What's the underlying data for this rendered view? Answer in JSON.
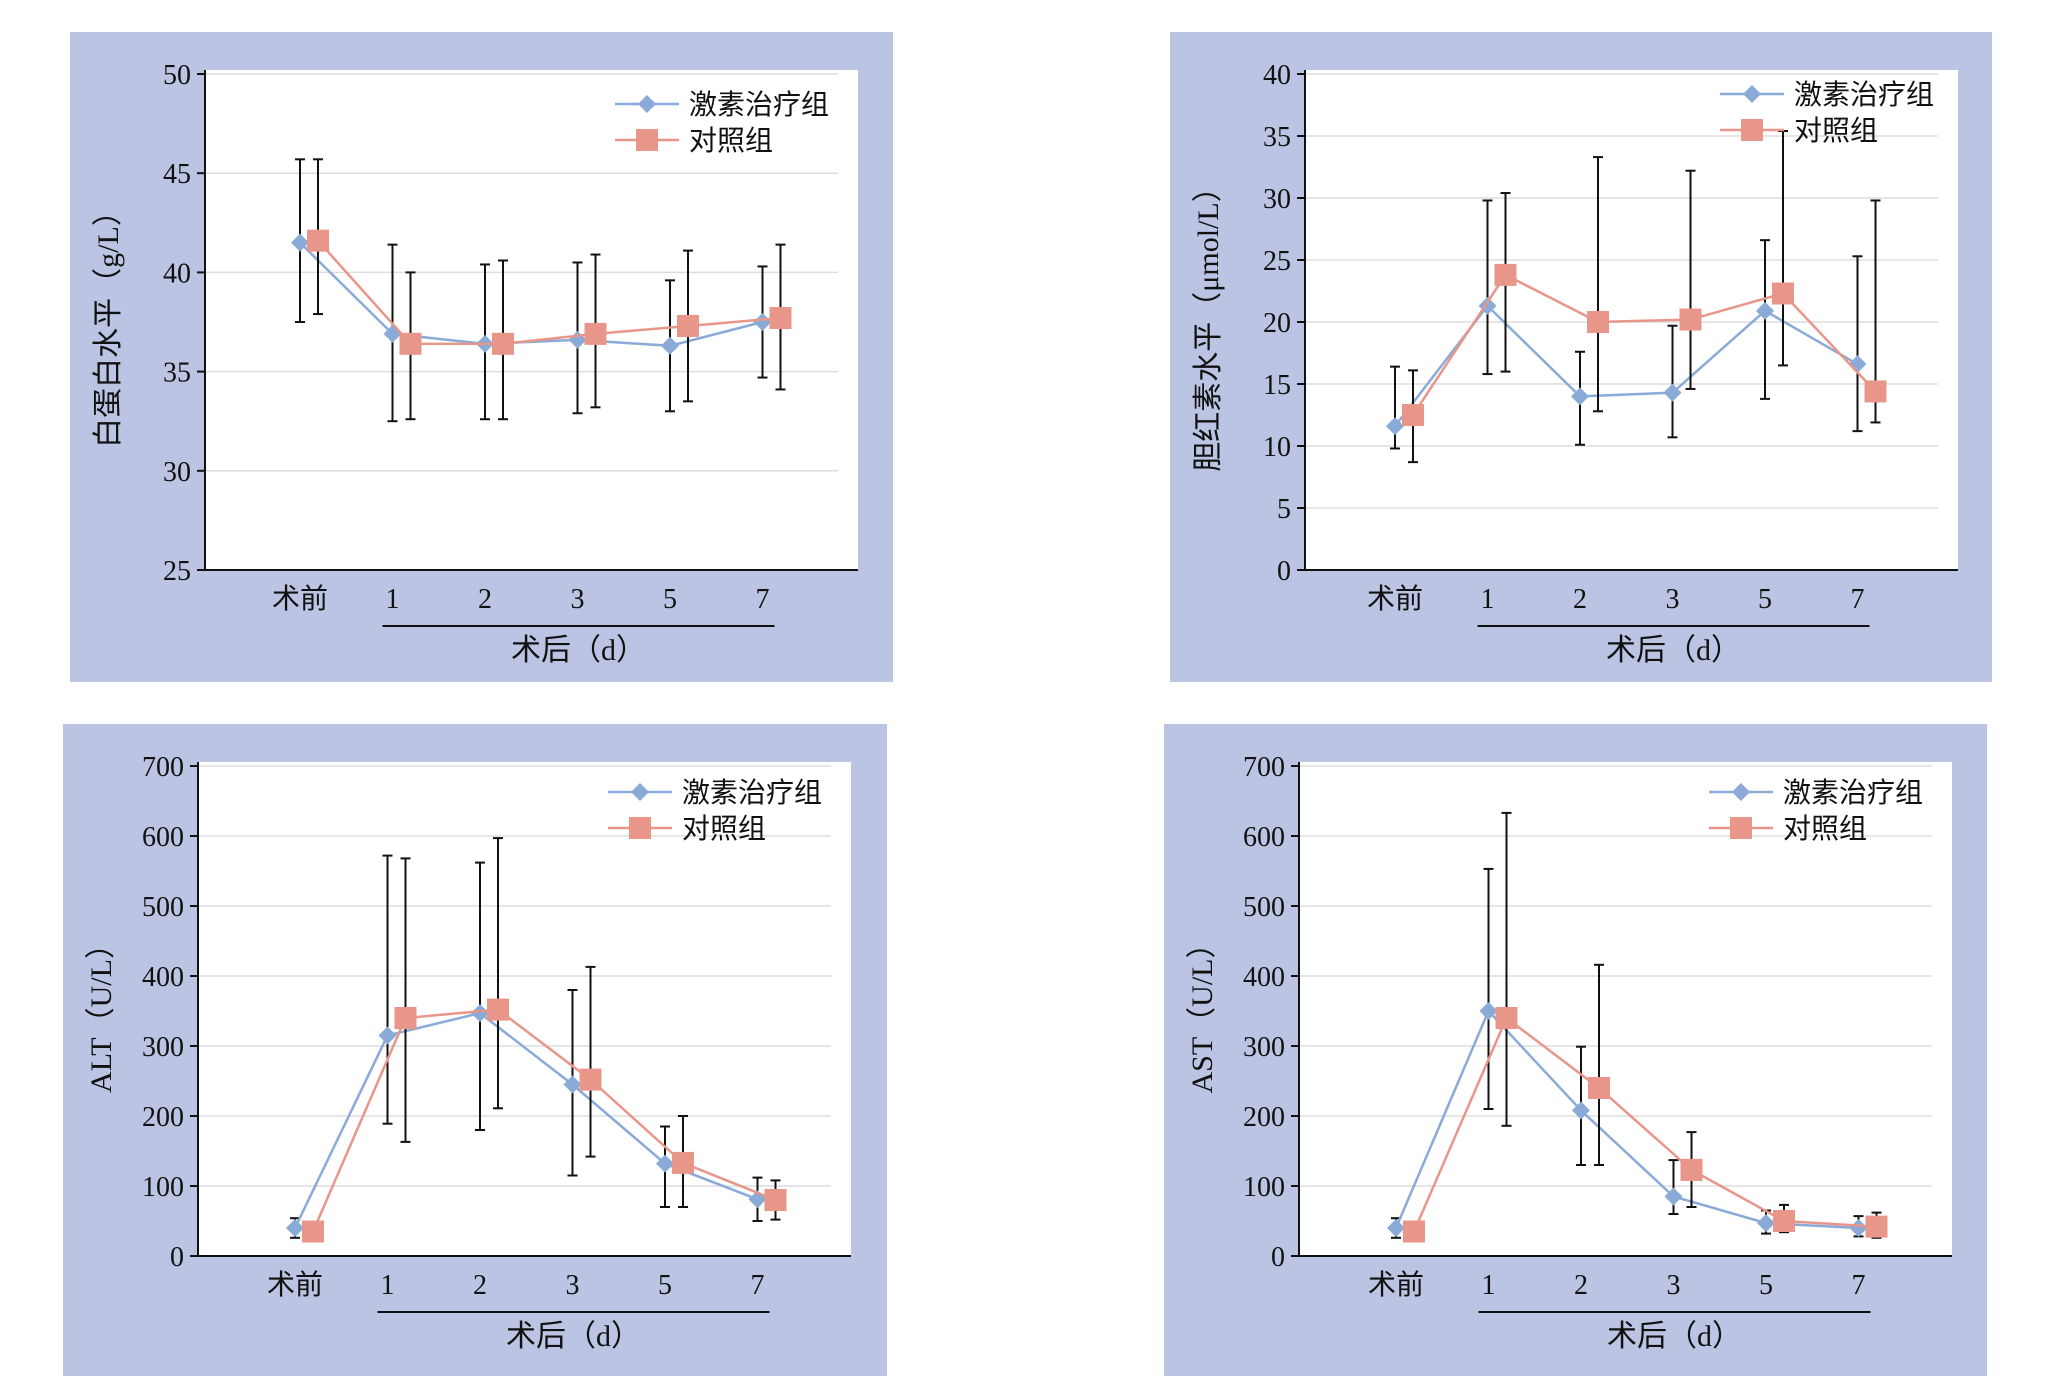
{
  "legend": {
    "treatment_label": "激素治疗组",
    "control_label": "对照组"
  },
  "colors": {
    "panel_bg": "#bcc4e3",
    "treatment": "#8aaad8",
    "control": "#e8968a",
    "error_bar": "#111111",
    "grid": "#dddddd"
  },
  "x_axis": {
    "categories": [
      "术前",
      "1",
      "2",
      "3",
      "5",
      "7"
    ],
    "group_label": "术后（d）"
  },
  "chart_data": [
    {
      "type": "line",
      "ylabel": "白蛋白水平（g/L）",
      "ylim": [
        25,
        50
      ],
      "yticks": [
        "25",
        "30",
        "35",
        "40",
        "45",
        "50"
      ],
      "categories": [
        "术前",
        "1",
        "2",
        "3",
        "5",
        "7"
      ],
      "series": [
        {
          "name": "激素治疗组",
          "values": [
            41.5,
            36.9,
            36.4,
            36.6,
            36.3,
            37.5
          ],
          "err_low": [
            37.5,
            32.5,
            32.6,
            32.9,
            33.0,
            34.7
          ],
          "err_high": [
            45.7,
            41.4,
            40.4,
            40.5,
            39.6,
            40.3
          ]
        },
        {
          "name": "对照组",
          "values": [
            41.6,
            36.4,
            36.4,
            36.9,
            37.3,
            37.7
          ],
          "err_low": [
            37.9,
            32.6,
            32.6,
            33.2,
            33.5,
            34.1
          ],
          "err_high": [
            45.7,
            40.0,
            40.6,
            40.9,
            41.1,
            41.4
          ]
        }
      ]
    },
    {
      "type": "line",
      "ylabel": "胆红素水平（μmol/L）",
      "ylim": [
        0,
        40
      ],
      "yticks": [
        "0",
        "5",
        "10",
        "15",
        "20",
        "25",
        "30",
        "35",
        "40"
      ],
      "categories": [
        "术前",
        "1",
        "2",
        "3",
        "5",
        "7"
      ],
      "series": [
        {
          "name": "激素治疗组",
          "values": [
            11.6,
            21.3,
            14.0,
            14.3,
            20.9,
            16.6
          ],
          "err_low": [
            9.8,
            15.8,
            10.1,
            10.7,
            13.8,
            11.2
          ],
          "err_high": [
            16.4,
            29.8,
            17.6,
            19.7,
            26.6,
            25.3
          ]
        },
        {
          "name": "对照组",
          "values": [
            12.5,
            23.8,
            20.0,
            20.2,
            22.3,
            14.4
          ],
          "err_low": [
            8.7,
            16.0,
            12.8,
            14.6,
            16.5,
            11.9
          ],
          "err_high": [
            16.1,
            30.4,
            33.3,
            32.2,
            35.4,
            29.8
          ]
        }
      ]
    },
    {
      "type": "line",
      "ylabel": "ALT（U/L）",
      "ylim": [
        0,
        700
      ],
      "yticks": [
        "0",
        "100",
        "200",
        "300",
        "400",
        "500",
        "600",
        "700"
      ],
      "categories": [
        "术前",
        "1",
        "2",
        "3",
        "5",
        "7"
      ],
      "series": [
        {
          "name": "激素治疗组",
          "values": [
            40,
            315,
            347,
            245,
            132,
            81
          ],
          "err_low": [
            26,
            189,
            180,
            115,
            70,
            50
          ],
          "err_high": [
            54,
            572,
            562,
            380,
            185,
            112
          ]
        },
        {
          "name": "对照组",
          "values": [
            35,
            340,
            352,
            252,
            133,
            80
          ],
          "err_low": [
            35,
            163,
            211,
            142,
            70,
            52
          ],
          "err_high": [
            35,
            568,
            597,
            413,
            200,
            108
          ]
        }
      ]
    },
    {
      "type": "line",
      "ylabel": "AST（U/L）",
      "ylim": [
        0,
        700
      ],
      "yticks": [
        "0",
        "100",
        "200",
        "300",
        "400",
        "500",
        "600",
        "700"
      ],
      "categories": [
        "术前",
        "1",
        "2",
        "3",
        "5",
        "7"
      ],
      "series": [
        {
          "name": "激素治疗组",
          "values": [
            40,
            350,
            208,
            85,
            47,
            40
          ],
          "err_low": [
            26,
            210,
            130,
            60,
            32,
            28
          ],
          "err_high": [
            54,
            553,
            299,
            137,
            65,
            57
          ]
        },
        {
          "name": "对照组",
          "values": [
            35,
            340,
            240,
            123,
            50,
            42
          ],
          "err_low": [
            35,
            186,
            130,
            70,
            34,
            26
          ],
          "err_high": [
            35,
            633,
            416,
            177,
            73,
            62
          ]
        }
      ]
    }
  ]
}
